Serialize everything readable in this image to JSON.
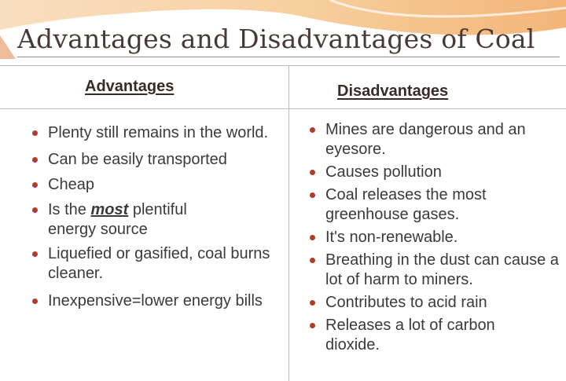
{
  "title": "Advantages and Disadvantages of Coal",
  "colors": {
    "bullet": "#b23b30",
    "swoosh": "#f0b070"
  },
  "advantages": {
    "heading": "Advantages",
    "items": [
      "Plenty still remains in the world.",
      "Can be easily transported",
      "Cheap",
      {
        "before": "Is the ",
        "emphasis": "most",
        "after": " plentiful energy source"
      },
      "Liquefied or gasified, coal burns cleaner.",
      "Inexpensive=lower energy bills"
    ]
  },
  "disadvantages": {
    "heading": "Disadvantages",
    "items": [
      "Mines are dangerous and an eyesore.",
      "Causes pollution",
      "Coal releases the most greenhouse gases.",
      "It's non-renewable.",
      "Breathing in the dust can cause a lot of harm to miners.",
      "Contributes to acid rain",
      "Releases a lot of carbon dioxide."
    ]
  }
}
